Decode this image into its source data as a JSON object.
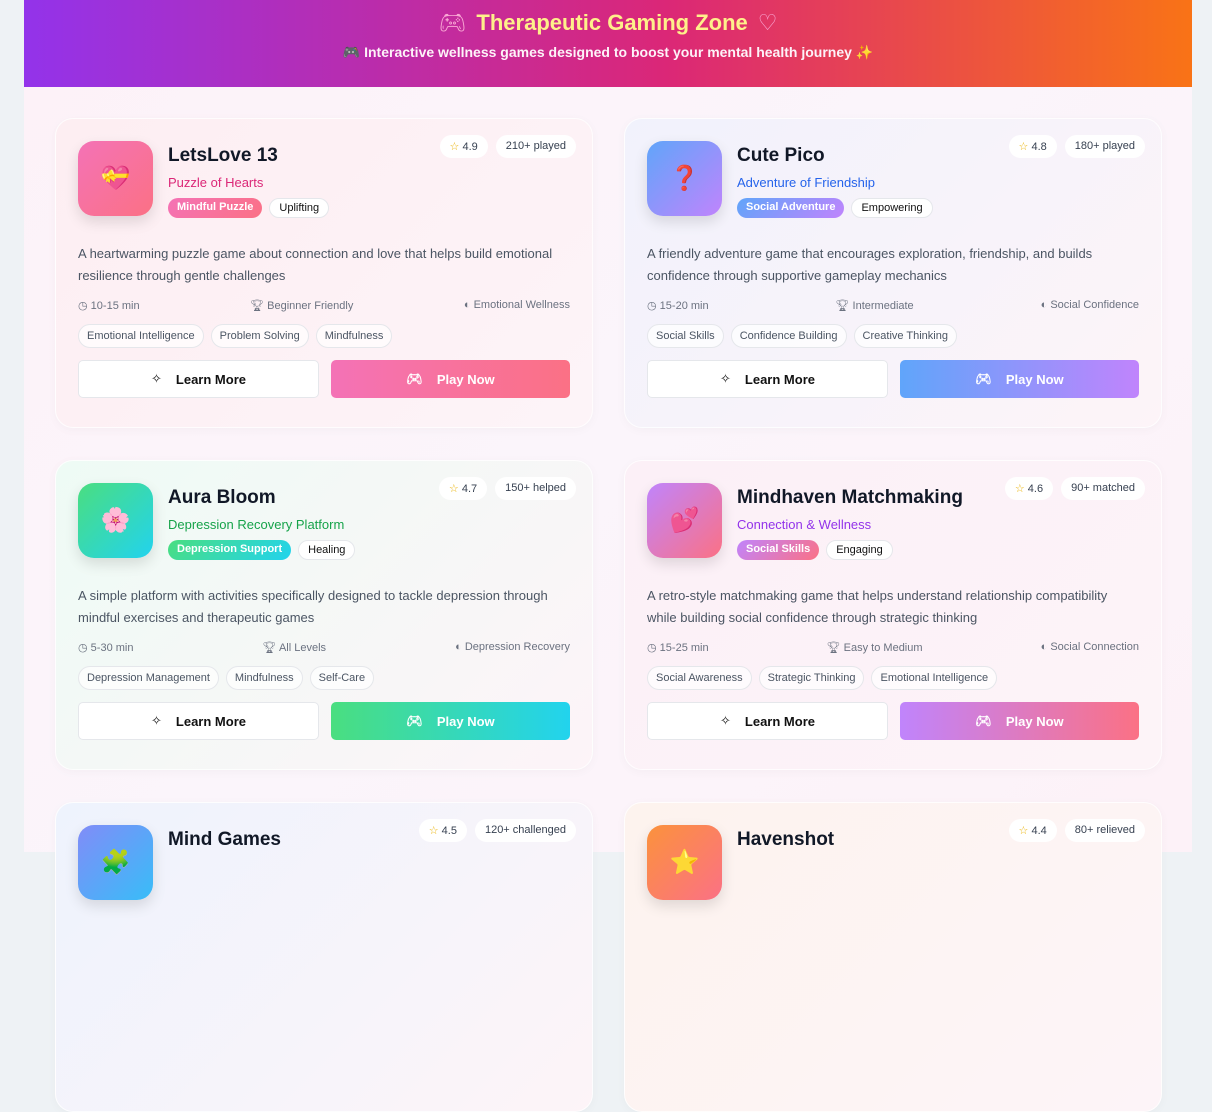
{
  "header": {
    "title": "Therapeutic Gaming Zone",
    "subtitle": "🎮 Interactive wellness games designed to boost your mental health journey ✨",
    "left_icon": "gamepad-icon",
    "right_icon": "heart-icon"
  },
  "buttons": {
    "learn_more": "Learn More",
    "play_now": "Play Now"
  },
  "games": [
    {
      "name": "LetsLove 13",
      "subtitle": "Puzzle of Hearts",
      "emoji": "💝",
      "primary_tag": "Mindful Puzzle",
      "secondary_tag": "Uplifting",
      "rating": "4.9",
      "count": "210+ played",
      "description": "A heartwarming puzzle game about connection and love that helps build emotional resilience through gentle challenges",
      "duration": "10-15 min",
      "level": "Beginner Friendly",
      "focus": "Emotional Wellness",
      "skills": [
        "Emotional Intelligence",
        "Problem Solving",
        "Mindfulness"
      ],
      "colors": {
        "from": "#f472b6",
        "to": "#fb7185",
        "accent": "#db2777",
        "bg": "#fdeef2"
      }
    },
    {
      "name": "Cute Pico",
      "subtitle": "Adventure of Friendship",
      "emoji": "❓",
      "primary_tag": "Social Adventure",
      "secondary_tag": "Empowering",
      "rating": "4.8",
      "count": "180+ played",
      "description": "A friendly adventure game that encourages exploration, friendship, and builds confidence through supportive gameplay mechanics",
      "duration": "15-20 min",
      "level": "Intermediate",
      "focus": "Social Confidence",
      "skills": [
        "Social Skills",
        "Confidence Building",
        "Creative Thinking"
      ],
      "colors": {
        "from": "#60a5fa",
        "to": "#c084fc",
        "accent": "#2563eb",
        "bg": "#f1f2fc"
      }
    },
    {
      "name": "Aura Bloom",
      "subtitle": "Depression Recovery Platform",
      "emoji": "🌸",
      "primary_tag": "Depression Support",
      "secondary_tag": "Healing",
      "rating": "4.7",
      "count": "150+ helped",
      "description": "A simple platform with activities specifically designed to tackle depression through mindful exercises and therapeutic games",
      "duration": "5-30 min",
      "level": "All Levels",
      "focus": "Depression Recovery",
      "skills": [
        "Depression Management",
        "Mindfulness",
        "Self-Care"
      ],
      "colors": {
        "from": "#4ade80",
        "to": "#22d3ee",
        "accent": "#16a34a",
        "bg": "#eefbf5"
      }
    },
    {
      "name": "Mindhaven Matchmaking",
      "subtitle": "Connection & Wellness",
      "emoji": "💕",
      "primary_tag": "Social Skills",
      "secondary_tag": "Engaging",
      "rating": "4.6",
      "count": "90+ matched",
      "description": "A retro-style matchmaking game that helps understand relationship compatibility while building social confidence through strategic thinking",
      "duration": "15-25 min",
      "level": "Easy to Medium",
      "focus": "Social Connection",
      "skills": [
        "Social Awareness",
        "Strategic Thinking",
        "Emotional Intelligence"
      ],
      "colors": {
        "from": "#c084fc",
        "to": "#fb7185",
        "accent": "#9333ea",
        "bg": "#fcf0f7"
      }
    },
    {
      "name": "Mind Games",
      "subtitle": "",
      "emoji": "🧩",
      "primary_tag": "",
      "secondary_tag": "",
      "rating": "4.5",
      "count": "120+ challenged",
      "description": "",
      "duration": "",
      "level": "",
      "focus": "",
      "skills": [],
      "colors": {
        "from": "#818cf8",
        "to": "#38bdf8",
        "accent": "#4f46e5",
        "bg": "#eef3fd"
      }
    },
    {
      "name": "Havenshot",
      "subtitle": "",
      "emoji": "⭐",
      "primary_tag": "",
      "secondary_tag": "",
      "rating": "4.4",
      "count": "80+ relieved",
      "description": "",
      "duration": "",
      "level": "",
      "focus": "",
      "skills": [],
      "colors": {
        "from": "#fb923c",
        "to": "#fb7185",
        "accent": "#ea580c",
        "bg": "#fdf3ee"
      }
    }
  ]
}
